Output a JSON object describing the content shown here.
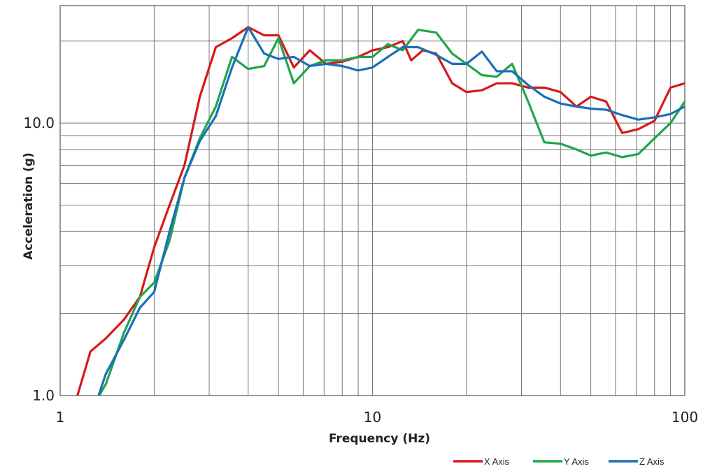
{
  "chart_data": {
    "type": "line",
    "xlabel": "Frequency (Hz)",
    "ylabel": "Acceleration (g)",
    "xscale": "log",
    "yscale": "log",
    "xlim": [
      1,
      100
    ],
    "ylim": [
      1,
      27
    ],
    "grid": true,
    "legend_position": "bottom-right",
    "x_tick_labels": [
      {
        "value": 1,
        "label": "1"
      },
      {
        "value": 10,
        "label": "10"
      },
      {
        "value": 100,
        "label": "100"
      }
    ],
    "y_tick_labels": [
      {
        "value": 1,
        "label": "1.0"
      },
      {
        "value": 10,
        "label": "10.0"
      }
    ],
    "series": [
      {
        "name": "X Axis",
        "color": "#d6191b",
        "points": [
          [
            1.13,
            0.98
          ],
          [
            1.25,
            1.45
          ],
          [
            1.4,
            1.62
          ],
          [
            1.6,
            1.9
          ],
          [
            1.8,
            2.3
          ],
          [
            2.0,
            3.5
          ],
          [
            2.24,
            5.0
          ],
          [
            2.5,
            7.0
          ],
          [
            2.8,
            12.5
          ],
          [
            3.15,
            19.0
          ],
          [
            3.55,
            20.5
          ],
          [
            4.0,
            22.5
          ],
          [
            4.5,
            21.0
          ],
          [
            5.0,
            21.0
          ],
          [
            5.6,
            16.0
          ],
          [
            6.3,
            18.5
          ],
          [
            7.1,
            16.5
          ],
          [
            8.0,
            16.8
          ],
          [
            9.0,
            17.5
          ],
          [
            10.0,
            18.5
          ],
          [
            11.2,
            19.0
          ],
          [
            12.5,
            20.0
          ],
          [
            13.3,
            17.0
          ],
          [
            14.5,
            18.5
          ],
          [
            16.0,
            18.0
          ],
          [
            18.0,
            14.0
          ],
          [
            20.0,
            13.0
          ],
          [
            22.4,
            13.2
          ],
          [
            25.0,
            14.0
          ],
          [
            28.0,
            14.0
          ],
          [
            31.5,
            13.5
          ],
          [
            35.5,
            13.5
          ],
          [
            40.0,
            13.0
          ],
          [
            45.0,
            11.5
          ],
          [
            50.0,
            12.5
          ],
          [
            56.0,
            12.0
          ],
          [
            63.0,
            9.2
          ],
          [
            71.0,
            9.5
          ],
          [
            80.0,
            10.2
          ],
          [
            90.0,
            13.5
          ],
          [
            100.0,
            14.0
          ]
        ]
      },
      {
        "name": "Y Axis",
        "color": "#1fa64a",
        "points": [
          [
            1.32,
            0.98
          ],
          [
            1.4,
            1.1
          ],
          [
            1.6,
            1.7
          ],
          [
            1.8,
            2.3
          ],
          [
            2.0,
            2.6
          ],
          [
            2.24,
            3.7
          ],
          [
            2.5,
            6.3
          ],
          [
            2.8,
            8.8
          ],
          [
            3.15,
            11.5
          ],
          [
            3.55,
            17.5
          ],
          [
            4.0,
            15.8
          ],
          [
            4.5,
            16.2
          ],
          [
            5.0,
            20.5
          ],
          [
            5.6,
            14.0
          ],
          [
            6.3,
            16.2
          ],
          [
            7.1,
            17.0
          ],
          [
            8.0,
            17.0
          ],
          [
            9.0,
            17.5
          ],
          [
            10.0,
            17.5
          ],
          [
            11.2,
            19.5
          ],
          [
            12.5,
            18.5
          ],
          [
            14.0,
            22.0
          ],
          [
            16.0,
            21.5
          ],
          [
            18.0,
            18.0
          ],
          [
            20.0,
            16.5
          ],
          [
            22.4,
            15.0
          ],
          [
            25.0,
            14.8
          ],
          [
            28.0,
            16.5
          ],
          [
            31.5,
            12.0
          ],
          [
            35.5,
            8.5
          ],
          [
            40.0,
            8.4
          ],
          [
            45.0,
            8.0
          ],
          [
            50.0,
            7.6
          ],
          [
            56.0,
            7.8
          ],
          [
            63.0,
            7.5
          ],
          [
            71.0,
            7.7
          ],
          [
            80.0,
            8.8
          ],
          [
            90.0,
            10.0
          ],
          [
            100.0,
            12.0
          ]
        ]
      },
      {
        "name": "Z Axis",
        "color": "#1a6fb8",
        "points": [
          [
            1.32,
            0.98
          ],
          [
            1.4,
            1.2
          ],
          [
            1.6,
            1.6
          ],
          [
            1.8,
            2.1
          ],
          [
            2.0,
            2.4
          ],
          [
            2.24,
            4.0
          ],
          [
            2.5,
            6.3
          ],
          [
            2.8,
            8.6
          ],
          [
            3.15,
            10.6
          ],
          [
            3.55,
            16.0
          ],
          [
            4.0,
            22.5
          ],
          [
            4.5,
            18.0
          ],
          [
            5.0,
            17.2
          ],
          [
            5.6,
            17.5
          ],
          [
            6.3,
            16.2
          ],
          [
            7.1,
            16.5
          ],
          [
            8.0,
            16.2
          ],
          [
            9.0,
            15.6
          ],
          [
            10.0,
            16.0
          ],
          [
            11.2,
            17.5
          ],
          [
            12.5,
            19.0
          ],
          [
            14.0,
            19.0
          ],
          [
            16.0,
            17.8
          ],
          [
            18.0,
            16.5
          ],
          [
            20.0,
            16.5
          ],
          [
            22.4,
            18.3
          ],
          [
            25.0,
            15.5
          ],
          [
            28.0,
            15.5
          ],
          [
            31.5,
            13.8
          ],
          [
            35.5,
            12.5
          ],
          [
            40.0,
            11.8
          ],
          [
            45.0,
            11.5
          ],
          [
            50.0,
            11.3
          ],
          [
            56.0,
            11.2
          ],
          [
            63.0,
            10.7
          ],
          [
            71.0,
            10.3
          ],
          [
            80.0,
            10.5
          ],
          [
            90.0,
            10.8
          ],
          [
            100.0,
            11.5
          ]
        ]
      }
    ]
  }
}
